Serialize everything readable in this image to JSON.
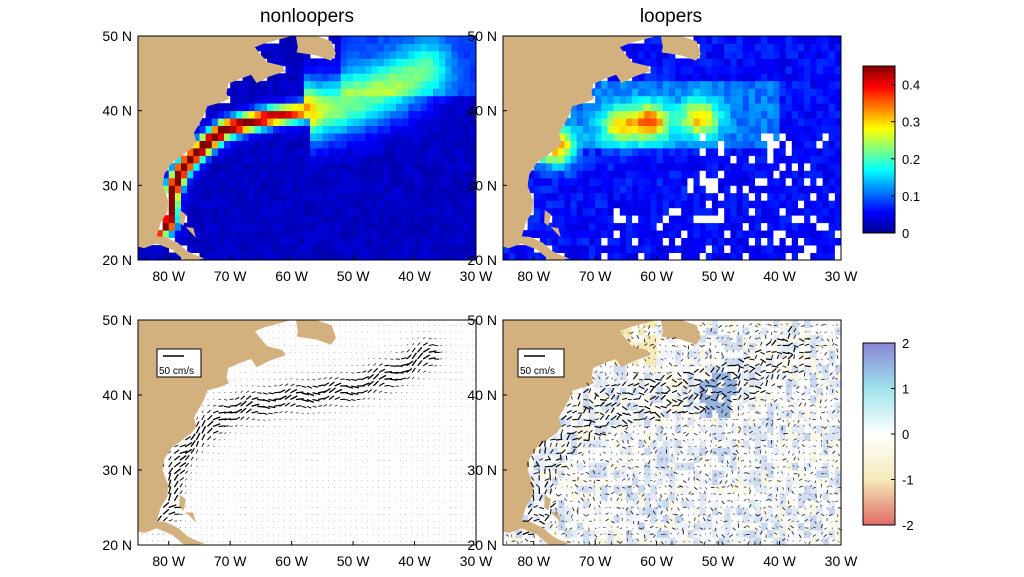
{
  "chart_data": [
    {
      "type": "heatmap",
      "title": "nonloopers",
      "x_ticks": [
        "80 W",
        "70 W",
        "60 W",
        "50 W",
        "40 W",
        "30 W"
      ],
      "y_ticks": [
        "20 N",
        "30 N",
        "40 N",
        "50 N"
      ],
      "xlim": [
        -85,
        -30
      ],
      "ylim": [
        20,
        50
      ],
      "colormap": "jet",
      "clim": [
        0,
        0.45
      ],
      "colorbar_ticks": [
        "0",
        "0.1",
        "0.2",
        "0.3",
        "0.4"
      ],
      "features": [
        {
          "kind": "jet_axis",
          "lon": [
            -82,
            -80,
            -79.5,
            -78,
            -76,
            -74,
            -71,
            -67,
            -63,
            -59,
            -55,
            -51,
            -47,
            -44,
            -41,
            -38
          ],
          "lat": [
            24,
            25,
            29,
            32,
            34,
            35.5,
            37.5,
            38.5,
            39.3,
            39.8,
            40.2,
            40.8,
            41.8,
            42.8,
            44,
            45.5
          ],
          "peak": [
            0.45,
            0.45,
            0.45,
            0.45,
            0.45,
            0.45,
            0.44,
            0.42,
            0.4,
            0.35,
            0.22,
            0.19,
            0.18,
            0.17,
            0.15,
            0.13
          ]
        }
      ],
      "background_level": 0.03,
      "land_color": "#d3b17f"
    },
    {
      "type": "heatmap",
      "title": "loopers",
      "x_ticks": [
        "80 W",
        "70 W",
        "60 W",
        "50 W",
        "40 W",
        "30 W"
      ],
      "y_ticks": [
        "20 N",
        "30 N",
        "40 N",
        "50 N"
      ],
      "xlim": [
        -85,
        -30
      ],
      "ylim": [
        20,
        50
      ],
      "colormap": "jet",
      "clim": [
        0,
        0.45
      ],
      "features": [
        {
          "kind": "patch",
          "lon": -61,
          "lat": 38.5,
          "peak": 0.3
        },
        {
          "kind": "patch",
          "lon": -53,
          "lat": 39,
          "peak": 0.25
        },
        {
          "kind": "patch",
          "lon": -66,
          "lat": 38,
          "peak": 0.22
        },
        {
          "kind": "patch",
          "lon": -76.5,
          "lat": 35,
          "peak": 0.33
        }
      ],
      "background_level": 0.06,
      "land_color": "#d3b17f"
    },
    {
      "type": "quiver",
      "title": "",
      "x_ticks": [
        "80 W",
        "70 W",
        "60 W",
        "50 W",
        "40 W",
        "30 W"
      ],
      "y_ticks": [
        "20 N",
        "30 N",
        "40 N",
        "50 N"
      ],
      "xlim": [
        -85,
        -30
      ],
      "ylim": [
        20,
        50
      ],
      "scale_label": "50 cm/s",
      "scale_value_cms": 50
    },
    {
      "type": "quiver",
      "title": "",
      "x_ticks": [
        "80 W",
        "70 W",
        "60 W",
        "50 W",
        "40 W",
        "30 W"
      ],
      "y_ticks": [
        "20 N",
        "30 N",
        "40 N",
        "50 N"
      ],
      "xlim": [
        -85,
        -30
      ],
      "ylim": [
        20,
        50
      ],
      "scale_label": "50 cm/s",
      "scale_value_cms": 50,
      "background_colormap": "red-white-blue",
      "clim": [
        -2,
        2
      ],
      "colorbar_ticks": [
        "2",
        "1",
        "0",
        "-1",
        "-2"
      ]
    }
  ]
}
